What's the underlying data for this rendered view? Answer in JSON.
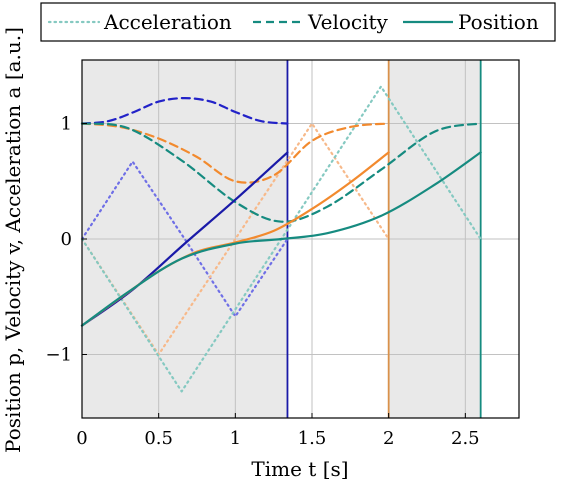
{
  "chart_data": {
    "type": "line",
    "xlabel": "Time t [s]",
    "ylabel": "Position p, Velocity v, Acceleration a [a.u.]",
    "xlim": [
      0,
      2.85
    ],
    "ylim": [
      -1.55,
      1.55
    ],
    "grid": true,
    "legend_placement": "top-center",
    "x_ticks": [
      0,
      0.5,
      1,
      1.5,
      2,
      2.5
    ],
    "x_tick_labels": [
      "0",
      "0.5",
      "1",
      "1.5",
      "2",
      "2.5"
    ],
    "y_ticks": [
      -1,
      0,
      1
    ],
    "y_tick_labels": [
      "−1",
      "0",
      "1"
    ],
    "legend": [
      {
        "label": "Acceleration",
        "style": "dotted"
      },
      {
        "label": "Velocity",
        "style": "dashed"
      },
      {
        "label": "Position",
        "style": "solid"
      }
    ],
    "shaded_regions": [
      {
        "x": [
          0,
          1.34
        ],
        "color": "#e9e9e9"
      },
      {
        "x": [
          2.0,
          2.6
        ],
        "color": "#e9e9e9"
      }
    ],
    "vertical_markers": [
      {
        "x": 1.34,
        "color": "#1a1aa8"
      },
      {
        "x": 2.0,
        "color": "#d9914a"
      },
      {
        "x": 2.6,
        "color": "#168b80"
      }
    ],
    "series": [
      {
        "group": "blue",
        "kind": "acceleration",
        "style": "dotted",
        "color": "#6f6fe6",
        "x": [
          0,
          0.33,
          0.67,
          1.0,
          1.34
        ],
        "y": [
          0,
          0.67,
          0.0,
          -0.67,
          0.0
        ]
      },
      {
        "group": "blue",
        "kind": "velocity",
        "style": "dashed",
        "color": "#2222c8",
        "x": [
          0,
          0.17,
          0.34,
          0.5,
          0.67,
          0.84,
          1.0,
          1.17,
          1.34
        ],
        "y": [
          1.0,
          1.02,
          1.1,
          1.19,
          1.22,
          1.19,
          1.1,
          1.02,
          1.0
        ]
      },
      {
        "group": "blue",
        "kind": "position",
        "style": "solid",
        "color": "#1a1aa8",
        "x": [
          0,
          0.33,
          0.67,
          1.0,
          1.34
        ],
        "y": [
          -0.75,
          -0.44,
          -0.04,
          0.34,
          0.75
        ]
      },
      {
        "group": "orange",
        "kind": "acceleration",
        "style": "dotted",
        "color": "#f7b98a",
        "x": [
          0,
          0.5,
          1.0,
          1.5,
          2.0
        ],
        "y": [
          0,
          -1.0,
          0.0,
          1.0,
          0.0
        ]
      },
      {
        "group": "orange",
        "kind": "velocity",
        "style": "dashed",
        "color": "#f28a2e",
        "x": [
          0,
          0.25,
          0.5,
          0.75,
          1.0,
          1.25,
          1.5,
          1.75,
          2.0
        ],
        "y": [
          1.0,
          0.97,
          0.87,
          0.71,
          0.5,
          0.55,
          0.85,
          0.97,
          1.0
        ]
      },
      {
        "group": "orange",
        "kind": "position",
        "style": "solid",
        "color": "#f28a2e",
        "x": [
          0,
          0.25,
          0.5,
          0.75,
          1.0,
          1.25,
          1.5,
          1.75,
          2.0
        ],
        "y": [
          -0.75,
          -0.51,
          -0.28,
          -0.11,
          -0.03,
          0.07,
          0.26,
          0.49,
          0.75
        ]
      },
      {
        "group": "teal",
        "kind": "acceleration",
        "style": "dotted",
        "color": "#85c9c1",
        "x": [
          0,
          0.65,
          1.3,
          1.95,
          2.6
        ],
        "y": [
          0,
          -1.32,
          0.0,
          1.32,
          0.0
        ]
      },
      {
        "group": "teal",
        "kind": "velocity",
        "style": "dashed",
        "color": "#168b80",
        "x": [
          0,
          0.3,
          0.65,
          1.0,
          1.3,
          1.6,
          1.95,
          2.3,
          2.6
        ],
        "y": [
          1.0,
          0.96,
          0.68,
          0.32,
          0.15,
          0.28,
          0.6,
          0.93,
          1.0
        ]
      },
      {
        "group": "teal",
        "kind": "position",
        "style": "solid",
        "color": "#168b80",
        "x": [
          0,
          0.3,
          0.65,
          1.0,
          1.3,
          1.6,
          1.95,
          2.3,
          2.6
        ],
        "y": [
          -0.75,
          -0.46,
          -0.17,
          -0.04,
          0.0,
          0.05,
          0.2,
          0.47,
          0.75
        ]
      }
    ]
  }
}
